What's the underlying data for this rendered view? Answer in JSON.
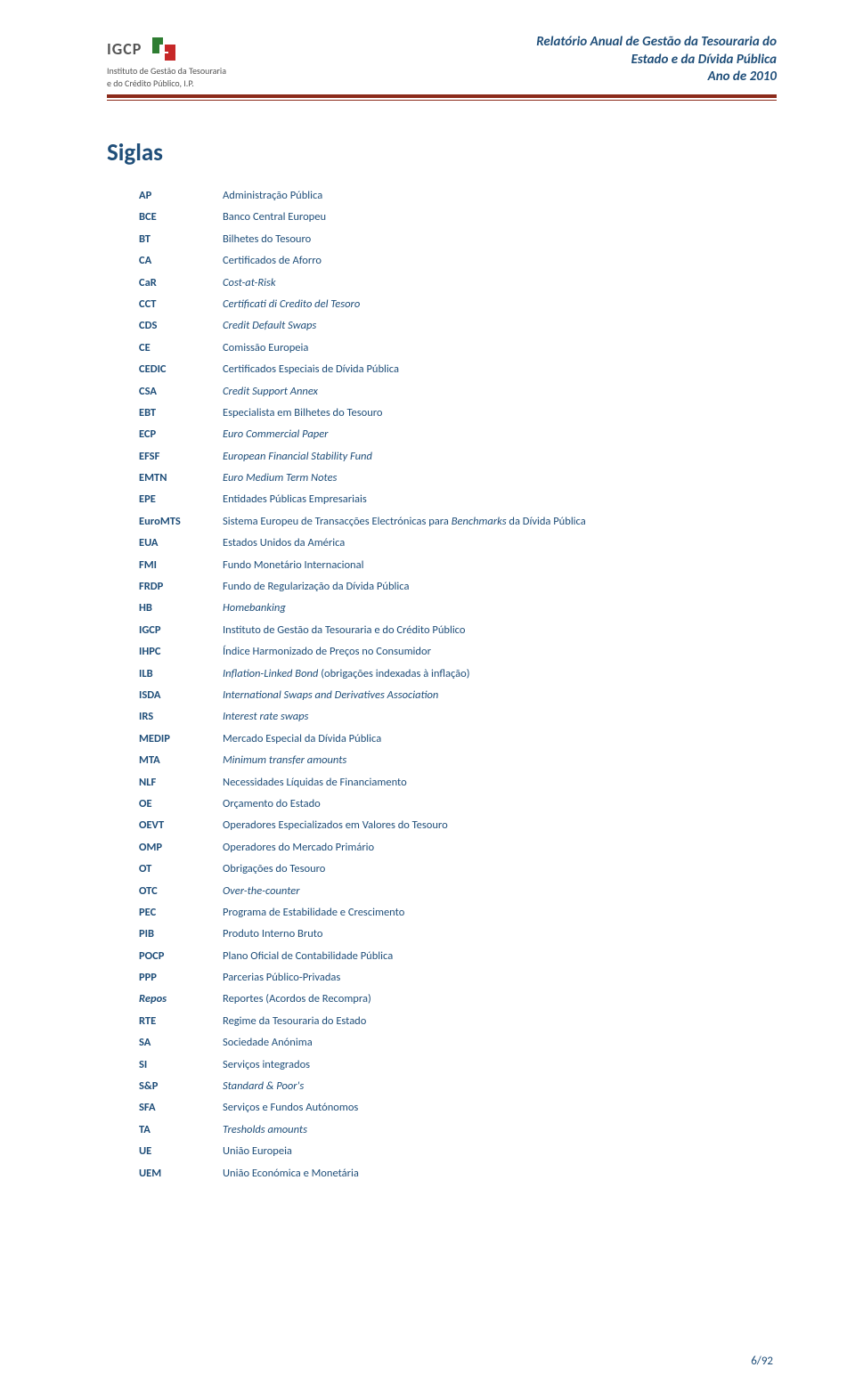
{
  "header": {
    "logo_acronym": "IGCP",
    "logo_sub_line1": "Instituto de Gestão da Tesouraria",
    "logo_sub_line2": "e do Crédito Público, I.P.",
    "title_line1": "Relatório Anual de Gestão da Tesouraria do",
    "title_line2": "Estado e da Dívida Pública",
    "title_line3": "Ano de 2010"
  },
  "heading": "Siglas",
  "siglas": [
    {
      "abbr": "AP",
      "abbr_italic": false,
      "desc": "Administração Pública",
      "desc_italic": false
    },
    {
      "abbr": "BCE",
      "abbr_italic": false,
      "desc": "Banco Central Europeu",
      "desc_italic": false
    },
    {
      "abbr": "BT",
      "abbr_italic": false,
      "desc": "Bilhetes do Tesouro",
      "desc_italic": false
    },
    {
      "abbr": "CA",
      "abbr_italic": false,
      "desc": "Certificados de Aforro",
      "desc_italic": false
    },
    {
      "abbr": "CaR",
      "abbr_italic": false,
      "desc": "Cost-at-Risk",
      "desc_italic": true
    },
    {
      "abbr": "CCT",
      "abbr_italic": false,
      "desc": "Certificati di Credito del Tesoro",
      "desc_italic": true
    },
    {
      "abbr": "CDS",
      "abbr_italic": false,
      "desc": "Credit Default Swaps",
      "desc_italic": true
    },
    {
      "abbr": "CE",
      "abbr_italic": false,
      "desc": "Comissão Europeia",
      "desc_italic": false
    },
    {
      "abbr": "CEDIC",
      "abbr_italic": false,
      "desc": "Certificados Especiais de Dívida Pública",
      "desc_italic": false
    },
    {
      "abbr": "CSA",
      "abbr_italic": false,
      "desc": "Credit Support Annex",
      "desc_italic": true
    },
    {
      "abbr": "EBT",
      "abbr_italic": false,
      "desc": "Especialista em Bilhetes do Tesouro",
      "desc_italic": false
    },
    {
      "abbr": "ECP",
      "abbr_italic": false,
      "desc": "Euro Commercial Paper",
      "desc_italic": true
    },
    {
      "abbr": "EFSF",
      "abbr_italic": false,
      "desc": "European Financial Stability Fund",
      "desc_italic": true
    },
    {
      "abbr": "EMTN",
      "abbr_italic": false,
      "desc": "Euro Medium Term Notes",
      "desc_italic": true
    },
    {
      "abbr": "EPE",
      "abbr_italic": false,
      "desc": "Entidades Públicas Empresariais",
      "desc_italic": false
    },
    {
      "abbr": "EuroMTS",
      "abbr_italic": false,
      "desc": "Sistema Europeu de Transacções Electrónicas para <i>Benchmarks</i> da Dívida Pública",
      "desc_italic": false,
      "desc_raw": true
    },
    {
      "abbr": "EUA",
      "abbr_italic": false,
      "desc": "Estados Unidos da América",
      "desc_italic": false
    },
    {
      "abbr": "FMI",
      "abbr_italic": false,
      "desc": "Fundo Monetário Internacional",
      "desc_italic": false
    },
    {
      "abbr": "FRDP",
      "abbr_italic": false,
      "desc": "Fundo de Regularização da Dívida Pública",
      "desc_italic": false
    },
    {
      "abbr": "HB",
      "abbr_italic": false,
      "desc": "Homebanking",
      "desc_italic": true
    },
    {
      "abbr": "IGCP",
      "abbr_italic": false,
      "desc": "Instituto de Gestão da Tesouraria e do Crédito Público",
      "desc_italic": false
    },
    {
      "abbr": "IHPC",
      "abbr_italic": false,
      "desc": "Índice Harmonizado de Preços no Consumidor",
      "desc_italic": false
    },
    {
      "abbr": "ILB",
      "abbr_italic": false,
      "desc": "<i>Inflation-Linked Bond</i> (obrigações indexadas à inflação)",
      "desc_italic": false,
      "desc_raw": true
    },
    {
      "abbr": "ISDA",
      "abbr_italic": false,
      "desc": "International Swaps and Derivatives Association",
      "desc_italic": true
    },
    {
      "abbr": "IRS",
      "abbr_italic": false,
      "desc": "Interest rate swaps",
      "desc_italic": true
    },
    {
      "abbr": "MEDIP",
      "abbr_italic": false,
      "desc": "Mercado Especial da Dívida Pública",
      "desc_italic": false
    },
    {
      "abbr": "MTA",
      "abbr_italic": false,
      "desc": "Minimum transfer amounts",
      "desc_italic": true
    },
    {
      "abbr": "NLF",
      "abbr_italic": false,
      "desc": "Necessidades Líquidas de Financiamento",
      "desc_italic": false
    },
    {
      "abbr": "OE",
      "abbr_italic": false,
      "desc": "Orçamento do Estado",
      "desc_italic": false
    },
    {
      "abbr": "OEVT",
      "abbr_italic": false,
      "desc": "Operadores Especializados em Valores do Tesouro",
      "desc_italic": false
    },
    {
      "abbr": "OMP",
      "abbr_italic": false,
      "desc": "Operadores do Mercado Primário",
      "desc_italic": false
    },
    {
      "abbr": "OT",
      "abbr_italic": false,
      "desc": "Obrigações do Tesouro",
      "desc_italic": false
    },
    {
      "abbr": "OTC",
      "abbr_italic": false,
      "desc": "Over-the-counter",
      "desc_italic": true
    },
    {
      "abbr": "PEC",
      "abbr_italic": false,
      "desc": "Programa de Estabilidade e Crescimento",
      "desc_italic": false
    },
    {
      "abbr": "PIB",
      "abbr_italic": false,
      "desc": "Produto Interno Bruto",
      "desc_italic": false
    },
    {
      "abbr": "POCP",
      "abbr_italic": false,
      "desc": "Plano Oficial de Contabilidade Pública",
      "desc_italic": false
    },
    {
      "abbr": "PPP",
      "abbr_italic": false,
      "desc": "Parcerias Público-Privadas",
      "desc_italic": false
    },
    {
      "abbr": "Repos",
      "abbr_italic": true,
      "desc": "Reportes (Acordos de Recompra)",
      "desc_italic": false
    },
    {
      "abbr": "RTE",
      "abbr_italic": false,
      "desc": "Regime da Tesouraria do Estado",
      "desc_italic": false
    },
    {
      "abbr": "SA",
      "abbr_italic": false,
      "desc": "Sociedade Anónima",
      "desc_italic": false
    },
    {
      "abbr": "SI",
      "abbr_italic": false,
      "desc": "Serviços integrados",
      "desc_italic": false
    },
    {
      "abbr": "S&P",
      "abbr_italic": false,
      "desc": "Standard & Poor's",
      "desc_italic": true
    },
    {
      "abbr": "SFA",
      "abbr_italic": false,
      "desc": "Serviços e Fundos Autónomos",
      "desc_italic": false
    },
    {
      "abbr": "TA",
      "abbr_italic": false,
      "desc": "Tresholds amounts",
      "desc_italic": true
    },
    {
      "abbr": "UE",
      "abbr_italic": false,
      "desc": "União Europeia",
      "desc_italic": false
    },
    {
      "abbr": "UEM",
      "abbr_italic": false,
      "desc": "União Económica e Monetária",
      "desc_italic": false
    }
  ],
  "footer": {
    "page": "6/92"
  },
  "colors": {
    "text_primary": "#1f4e79",
    "rule": "#8b2a1a",
    "logo_gray": "#555555",
    "logo_green": "#2e7d32",
    "logo_red": "#c62828",
    "background": "#ffffff"
  }
}
